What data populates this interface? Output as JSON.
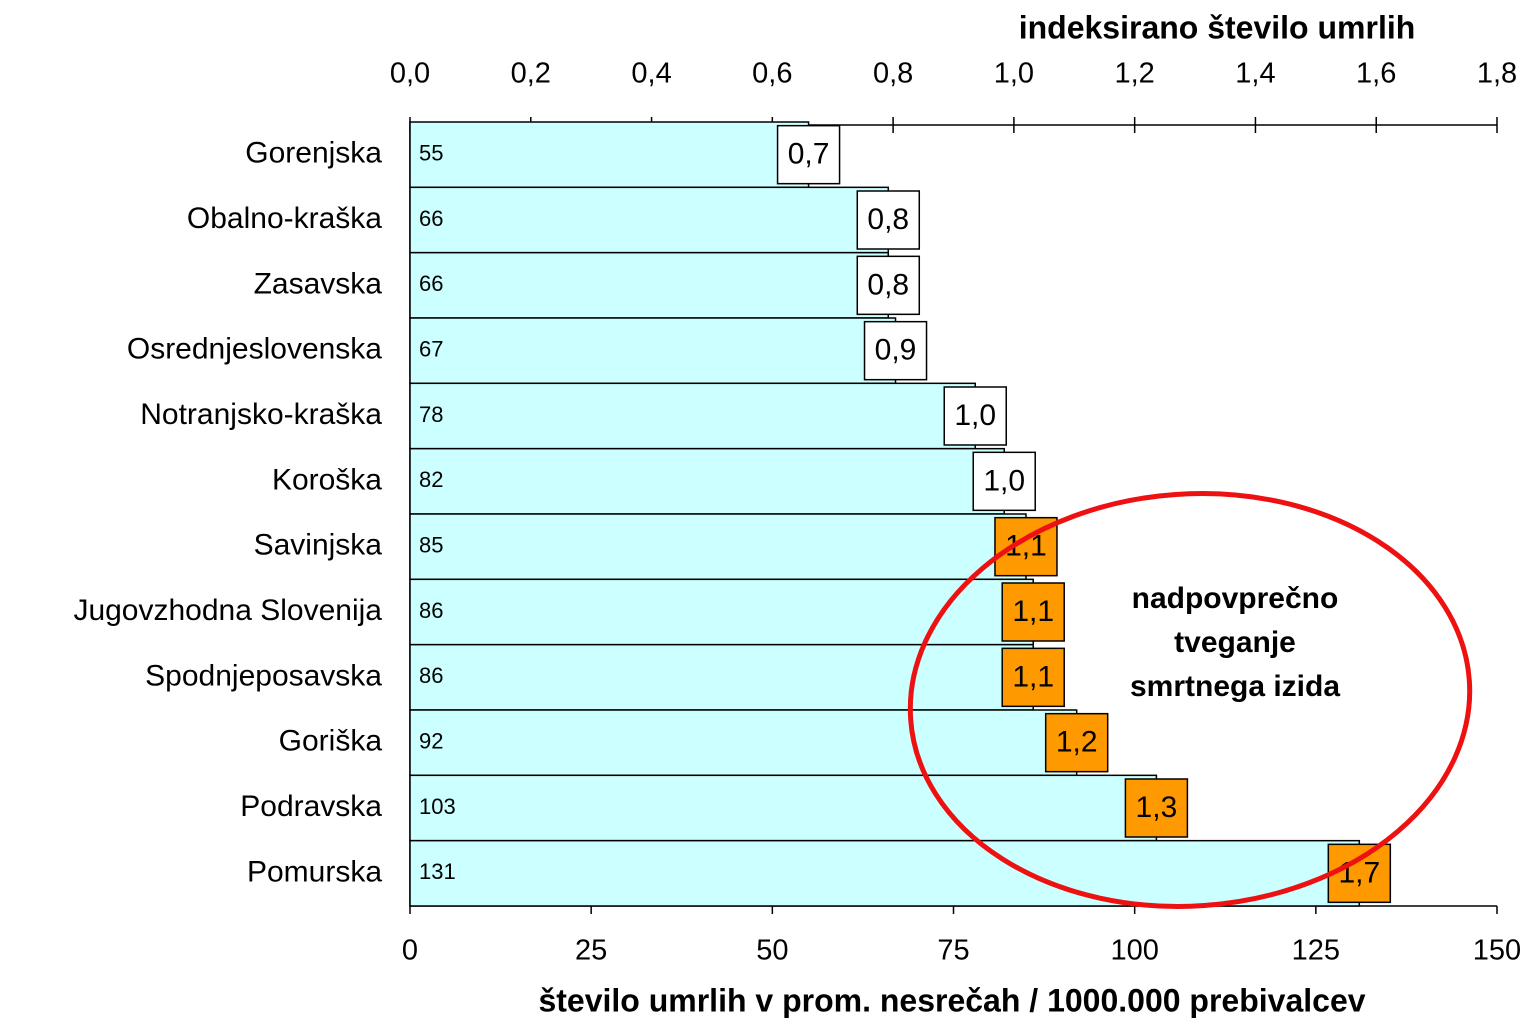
{
  "chart_data": {
    "type": "hbar",
    "categories": [
      "Gorenjska",
      "Obalno-kraška",
      "Zasavska",
      "Osrednjeslovenska",
      "Notranjsko-kraška",
      "Koroška",
      "Savinjska",
      "Jugovzhodna Slovenija",
      "Spodnjeposavska",
      "Goriška",
      "Podravska",
      "Pomurska"
    ],
    "series": [
      {
        "name": "število umrlih",
        "color": "#ccffff",
        "values": [
          55,
          66,
          66,
          67,
          78,
          82,
          85,
          86,
          86,
          92,
          103,
          131
        ]
      },
      {
        "name": "indeks",
        "axis": "x2",
        "values": [
          0.7,
          0.8,
          0.8,
          0.9,
          1.0,
          1.0,
          1.1,
          1.1,
          1.1,
          1.2,
          1.3,
          1.7
        ],
        "value_labels": [
          "0,7",
          "0,8",
          "0,8",
          "0,9",
          "1,0",
          "1,0",
          "1,1",
          "1,1",
          "1,1",
          "1,2",
          "1,3",
          "1,7"
        ],
        "colors": [
          "#ffffff",
          "#ffffff",
          "#ffffff",
          "#ffffff",
          "#ffffff",
          "#ffffff",
          "#ff9900",
          "#ff9900",
          "#ff9900",
          "#ff9900",
          "#ff9900",
          "#ff9900"
        ]
      }
    ],
    "xlabel": "število umrlih v prom. nesrečah / 1000.000 prebivalcev",
    "xlim": [
      0,
      150
    ],
    "xticks": [
      0,
      25,
      50,
      75,
      100,
      125,
      150
    ],
    "x2label": "indeksirano število umrlih",
    "x2lim": [
      0,
      1.8
    ],
    "x2ticks": [
      {
        "value": 0,
        "label": "0,0"
      },
      {
        "value": 0.2,
        "label": "0,2"
      },
      {
        "value": 0.4,
        "label": "0,4"
      },
      {
        "value": 0.6,
        "label": "0,6"
      },
      {
        "value": 0.8,
        "label": "0,8"
      },
      {
        "value": 1.0,
        "label": "1,0"
      },
      {
        "value": 1.2,
        "label": "1,2"
      },
      {
        "value": 1.4,
        "label": "1,4"
      },
      {
        "value": 1.6,
        "label": "1,6"
      },
      {
        "value": 1.8,
        "label": "1,8"
      }
    ],
    "annotation": [
      "nadpovprečno",
      "tveganje",
      "smrtnega izida"
    ],
    "annotation_color": "#ee1111"
  }
}
